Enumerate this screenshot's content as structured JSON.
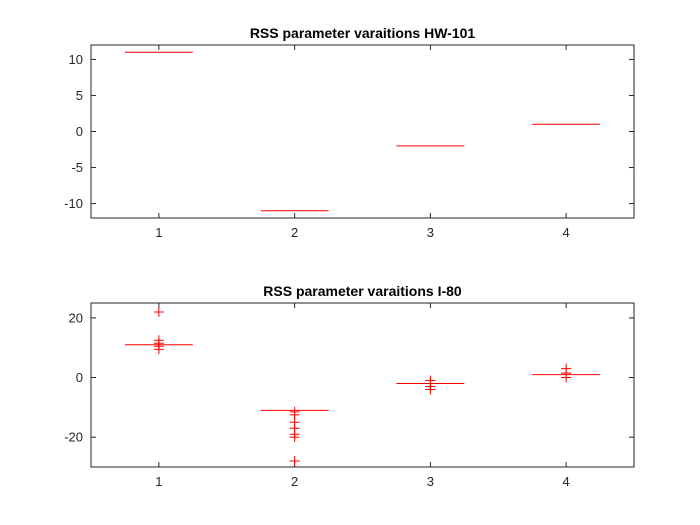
{
  "chart_data": [
    {
      "type": "boxplot",
      "title": "RSS parameter varaitions HW-101",
      "xlabel": "",
      "ylabel": "",
      "categories": [
        "1",
        "2",
        "3",
        "4"
      ],
      "ylim": [
        -12,
        12
      ],
      "yticks": [
        -10,
        -5,
        0,
        5,
        10
      ],
      "box_color": "#ff0000",
      "medians": [
        11,
        -11,
        -2,
        1
      ],
      "outliers": [
        [],
        [],
        [],
        []
      ],
      "grid": false
    },
    {
      "type": "boxplot",
      "title": "RSS parameter varaitions I-80",
      "xlabel": "",
      "ylabel": "",
      "categories": [
        "1",
        "2",
        "3",
        "4"
      ],
      "ylim": [
        -30,
        25
      ],
      "yticks": [
        -20,
        0,
        20
      ],
      "box_color": "#ff0000",
      "medians": [
        11,
        -11,
        -2,
        1
      ],
      "outliers": [
        [
          22,
          12.5,
          11.5,
          10.5,
          9.5
        ],
        [
          -11.5,
          -12.5,
          -15,
          -17,
          -19,
          -20,
          -28
        ],
        [
          -1,
          -2,
          -3,
          -4
        ],
        [
          3,
          1.5,
          0
        ]
      ],
      "grid": false
    }
  ]
}
